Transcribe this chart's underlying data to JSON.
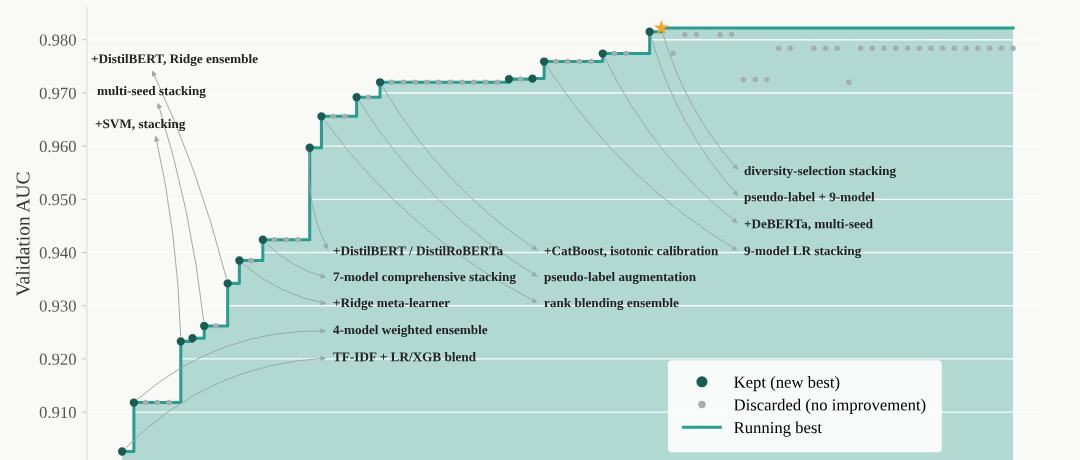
{
  "chart_data": {
    "type": "scatter",
    "ylabel": "Validation AUC",
    "categories": [
      null,
      null,
      null,
      null,
      null,
      null,
      null,
      null,
      null,
      null,
      null,
      null,
      null,
      null,
      null,
      null,
      null,
      null,
      null,
      null,
      null,
      null,
      null,
      null,
      null,
      null,
      null,
      null,
      null,
      null,
      null,
      null,
      null,
      null,
      null,
      null,
      null,
      null,
      null,
      null,
      null,
      null,
      null,
      null,
      null,
      null,
      null,
      null,
      null,
      null,
      null,
      null,
      null,
      null,
      null,
      null,
      null,
      null,
      null,
      null,
      null,
      null,
      null,
      null,
      null,
      null,
      null,
      null,
      null,
      null,
      null,
      null,
      null,
      null,
      null,
      null,
      null
    ],
    "ylim": [
      0.901,
      0.986
    ],
    "yticks": [
      {
        "value": 0.91,
        "label": "0.910"
      },
      {
        "value": 0.92,
        "label": "0.920"
      },
      {
        "value": 0.93,
        "label": "0.930"
      },
      {
        "value": 0.94,
        "label": "0.940"
      },
      {
        "value": 0.95,
        "label": "0.950"
      },
      {
        "value": 0.96,
        "label": "0.960"
      },
      {
        "value": 0.97,
        "label": "0.970"
      },
      {
        "value": 0.98,
        "label": "0.980"
      }
    ],
    "grid": "y",
    "legend": "bottom right",
    "tick_labels": "y",
    "series": [
      {
        "name": "Kept (new best)",
        "marker": "circle",
        "color": "#1b5c52",
        "values": [
          0.9026,
          0.9118,
          null,
          null,
          null,
          0.9233,
          0.9239,
          0.9262,
          null,
          0.9342,
          0.9385,
          null,
          0.9424,
          null,
          null,
          null,
          0.9597,
          0.9656,
          null,
          null,
          0.9692,
          null,
          0.972,
          null,
          null,
          null,
          null,
          null,
          null,
          null,
          null,
          null,
          null,
          0.9726,
          null,
          0.9727,
          0.9759,
          null,
          null,
          null,
          null,
          0.9774,
          null,
          null,
          null,
          0.9815,
          null,
          null,
          null,
          null,
          null,
          null,
          null,
          null,
          null,
          null,
          null,
          null,
          null,
          null,
          null,
          null,
          null,
          null,
          null,
          null,
          null,
          null,
          null,
          null,
          null,
          null,
          null,
          null,
          null,
          null,
          null
        ]
      },
      {
        "name": "Discarded (no improvement)",
        "marker": "circle",
        "color": "#a4aeac",
        "values": [
          null,
          null,
          0.9118,
          0.9118,
          0.9118,
          null,
          null,
          null,
          0.9262,
          null,
          null,
          0.9385,
          null,
          0.9424,
          0.9424,
          0.9424,
          null,
          null,
          0.9656,
          0.9656,
          null,
          0.9692,
          null,
          0.972,
          0.972,
          0.972,
          0.972,
          0.972,
          0.972,
          0.972,
          0.972,
          0.972,
          0.972,
          null,
          0.9726,
          null,
          null,
          0.9759,
          0.9759,
          0.9759,
          0.9759,
          null,
          0.9774,
          0.9774,
          null,
          null,
          null,
          0.9774,
          0.981,
          0.981,
          null,
          0.981,
          0.981,
          0.9725,
          0.9725,
          0.9725,
          0.9784,
          0.9784,
          null,
          0.9784,
          0.9784,
          0.9784,
          0.972,
          0.9784,
          0.9784,
          0.9784,
          0.9784,
          0.9784,
          0.9784,
          0.9784,
          0.9784,
          0.9784,
          0.9784,
          0.9784,
          0.9784,
          0.9784,
          0.9784
        ]
      },
      {
        "marker": "star",
        "color": "#f2a52a",
        "values": [
          null,
          null,
          null,
          null,
          null,
          null,
          null,
          null,
          null,
          null,
          null,
          null,
          null,
          null,
          null,
          null,
          null,
          null,
          null,
          null,
          null,
          null,
          null,
          null,
          null,
          null,
          null,
          null,
          null,
          null,
          null,
          null,
          null,
          null,
          null,
          null,
          null,
          null,
          null,
          null,
          null,
          null,
          null,
          null,
          null,
          null,
          0.9822,
          null,
          null,
          null,
          null,
          null,
          null,
          null,
          null,
          null,
          null,
          null,
          null,
          null,
          null,
          null,
          null,
          null,
          null,
          null,
          null,
          null,
          null,
          null,
          null,
          null,
          null,
          null,
          null,
          null,
          null
        ]
      },
      {
        "type": "area",
        "color": "#2a9d8f",
        "values": [
          0.9026,
          0.9118,
          0.9118,
          0.9118,
          0.9118,
          0.9233,
          0.9239,
          0.9262,
          0.9262,
          0.9342,
          0.9385,
          0.9385,
          0.9424,
          0.9424,
          0.9424,
          0.9424,
          0.9597,
          0.9656,
          0.9656,
          0.9656,
          0.9692,
          0.9692,
          0.972,
          0.972,
          0.972,
          0.972,
          0.972,
          0.972,
          0.972,
          0.972,
          0.972,
          0.972,
          0.972,
          0.9726,
          0.9726,
          0.9727,
          0.9759,
          0.9759,
          0.9759,
          0.9759,
          0.9759,
          0.9774,
          0.9774,
          0.9774,
          0.9774,
          0.9815,
          0.9822,
          0.9822,
          0.9822,
          0.9822,
          0.9822,
          0.9822,
          0.9822,
          0.9822,
          0.9822,
          0.9822,
          0.9822,
          0.9822,
          0.9822,
          0.9822,
          0.9822,
          0.9822,
          0.9822,
          0.9822,
          0.9822,
          0.9822,
          0.9822,
          0.9822,
          0.9822,
          0.9822,
          0.9822,
          0.9822,
          0.9822,
          0.9822,
          0.9822,
          0.9822,
          0.9822
        ]
      },
      {
        "name": "Running best",
        "type": "step",
        "color": "#2a9d8f",
        "values": [
          0.9026,
          0.9118,
          0.9118,
          0.9118,
          0.9118,
          0.9233,
          0.9239,
          0.9262,
          0.9262,
          0.9342,
          0.9385,
          0.9385,
          0.9424,
          0.9424,
          0.9424,
          0.9424,
          0.9597,
          0.9656,
          0.9656,
          0.9656,
          0.9692,
          0.9692,
          0.972,
          0.972,
          0.972,
          0.972,
          0.972,
          0.972,
          0.972,
          0.972,
          0.972,
          0.972,
          0.972,
          0.9726,
          0.9726,
          0.9727,
          0.9759,
          0.9759,
          0.9759,
          0.9759,
          0.9759,
          0.9774,
          0.9774,
          0.9774,
          0.9774,
          0.9815,
          0.9822,
          0.9822,
          0.9822,
          0.9822,
          0.9822,
          0.9822,
          0.9822,
          0.9822,
          0.9822,
          0.9822,
          0.9822,
          0.9822,
          0.9822,
          0.9822,
          0.9822,
          0.9822,
          0.9822,
          0.9822,
          0.9822,
          0.9822,
          0.9822,
          0.9822,
          0.9822,
          0.9822,
          0.9822,
          0.9822,
          0.9822,
          0.9822,
          0.9822,
          0.9822,
          0.9822
        ]
      }
    ],
    "annotations": [
      "TF-IDF + LR/XGB blend",
      "4-model weighted ensemble",
      "+SVM, stacking",
      "multi-seed stacking",
      "+DistilBERT, Ridge ensemble",
      "+Ridge meta-learner",
      "7-model comprehensive stacking",
      "+DistilBERT / DistilRoBERTa",
      "rank blending ensemble",
      "pseudo-label augmentation",
      "+CatBoost, isotonic calibration",
      "9-model LR stacking",
      "+DeBERTa, multi-seed",
      "pseudo-label + 9-model",
      "diversity-selection stacking"
    ]
  }
}
